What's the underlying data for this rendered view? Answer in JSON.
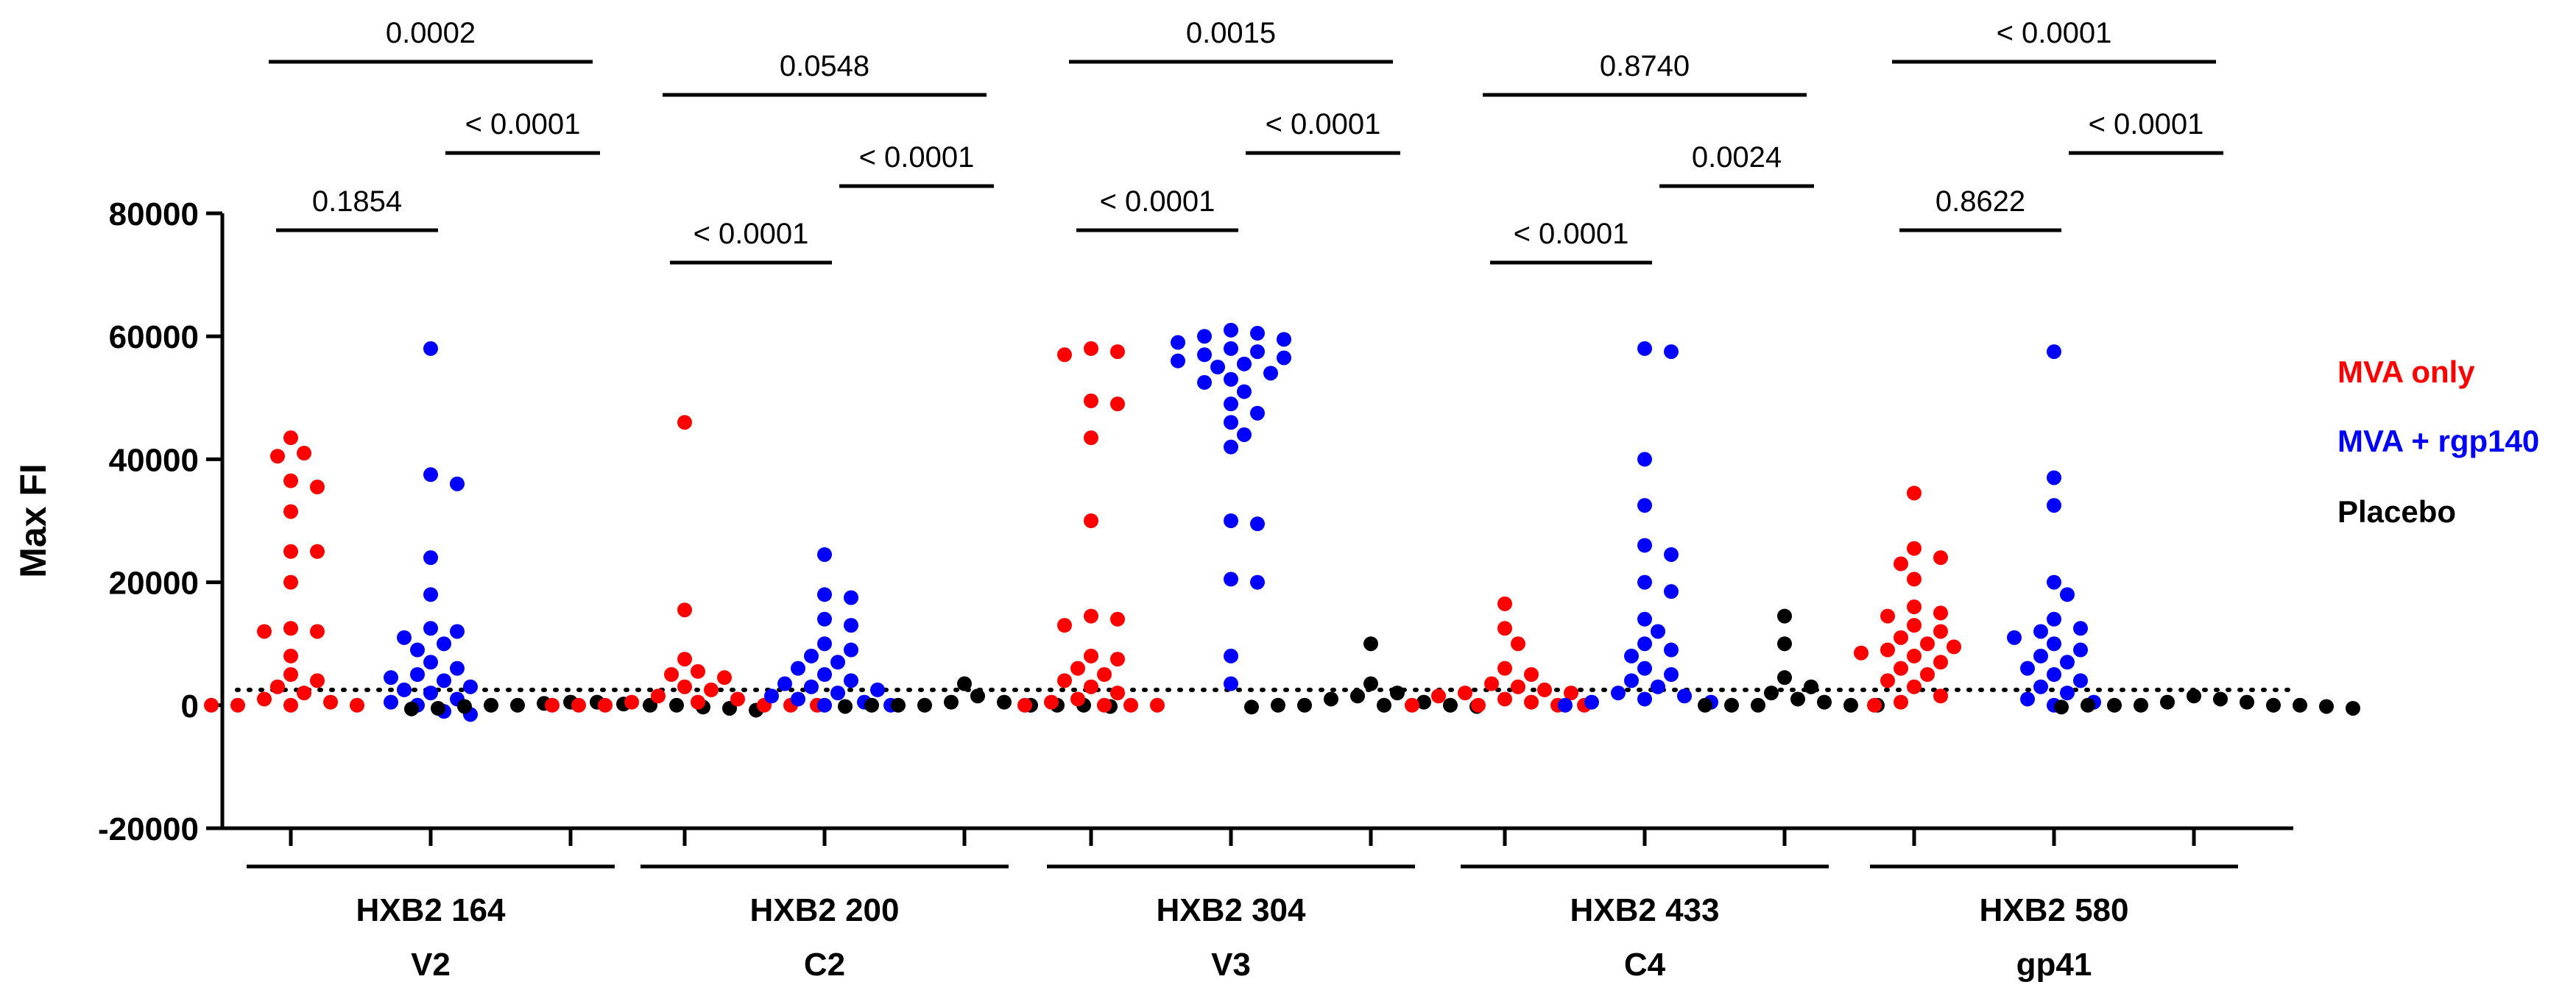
{
  "chart_data": {
    "type": "scatter",
    "ylabel": "Max FI",
    "ylim": [
      -20000,
      80000
    ],
    "yticks": [
      80000,
      60000,
      40000,
      20000,
      0,
      -20000
    ],
    "threshold": 2500,
    "legend_position": "right",
    "series": [
      {
        "name": "MVA only",
        "color": "#ff0000"
      },
      {
        "name": "MVA + rgp140",
        "color": "#0000ff"
      },
      {
        "name": "Placebo",
        "color": "#000000"
      }
    ],
    "groups": [
      {
        "line1": "HXB2 164",
        "line2": "V2",
        "comparisons": {
          "mva_vs_rgp": "0.1854",
          "rgp_vs_placebo": "< 0.0001",
          "mva_vs_placebo": "0.0002"
        },
        "values": {
          "MVA only": [
            43500,
            41000,
            40500,
            36500,
            35500,
            31500,
            25000,
            25000,
            20000,
            12500,
            12000,
            12000,
            8000,
            5000,
            4000,
            3000,
            2000,
            1000,
            500,
            0,
            0,
            0,
            0
          ],
          "MVA + rgp140": [
            58000,
            37500,
            36000,
            24000,
            18000,
            12500,
            12000,
            11000,
            10000,
            9000,
            7000,
            6000,
            5000,
            4500,
            4000,
            3000,
            2500,
            2000,
            1000,
            500,
            0,
            -1000,
            -1500
          ],
          "Placebo": [
            500,
            500,
            0,
            0,
            0,
            -200,
            -300,
            -500,
            -500,
            -600,
            -800,
            200,
            300,
            0
          ]
        }
      },
      {
        "line1": "HXB2 200",
        "line2": "C2",
        "comparisons": {
          "mva_vs_rgp": "< 0.0001",
          "rgp_vs_placebo": "< 0.0001",
          "mva_vs_placebo": "0.0548"
        },
        "values": {
          "MVA only": [
            46000,
            15500,
            7500,
            5500,
            5000,
            4500,
            3000,
            2500,
            1500,
            1000,
            500,
            500,
            0,
            0,
            0,
            0,
            0,
            0
          ],
          "MVA + rgp140": [
            24500,
            18000,
            17500,
            14000,
            13000,
            10000,
            9000,
            8000,
            7000,
            6000,
            5000,
            4000,
            3500,
            3000,
            2500,
            2000,
            1500,
            1000,
            500,
            0,
            0
          ],
          "Placebo": [
            3500,
            1500,
            500,
            500,
            0,
            0,
            0,
            0,
            0,
            -200,
            -200,
            0
          ]
        }
      },
      {
        "line1": "HXB2 304",
        "line2": "V3",
        "comparisons": {
          "mva_vs_rgp": "< 0.0001",
          "rgp_vs_placebo": "< 0.0001",
          "mva_vs_placebo": "0.0015"
        },
        "values": {
          "MVA only": [
            58000,
            57500,
            57000,
            49500,
            49000,
            43500,
            30000,
            14500,
            14000,
            13000,
            8000,
            7500,
            6000,
            5000,
            4000,
            3000,
            2000,
            1000,
            500,
            0,
            0,
            0,
            0
          ],
          "MVA + rgp140": [
            61000,
            60500,
            60000,
            59500,
            59000,
            58000,
            57500,
            57000,
            56500,
            56000,
            55500,
            55000,
            54000,
            53000,
            52500,
            51000,
            49000,
            47500,
            46000,
            44000,
            42000,
            30000,
            29500,
            20500,
            20000,
            8000,
            3500
          ],
          "Placebo": [
            10000,
            3500,
            2000,
            1500,
            1000,
            500,
            0,
            0,
            0,
            -200,
            -300,
            0
          ]
        }
      },
      {
        "line1": "HXB2 433",
        "line2": "C4",
        "comparisons": {
          "mva_vs_rgp": "< 0.0001",
          "rgp_vs_placebo": "0.0024",
          "mva_vs_placebo": "0.8740"
        },
        "values": {
          "MVA only": [
            16500,
            12500,
            10000,
            6000,
            5000,
            3500,
            3000,
            2500,
            2000,
            2000,
            1500,
            1000,
            500,
            0,
            0,
            0,
            0
          ],
          "MVA + rgp140": [
            58000,
            57500,
            40000,
            32500,
            26000,
            24500,
            20000,
            18500,
            14000,
            12000,
            10000,
            9000,
            8000,
            6000,
            5000,
            4000,
            3000,
            2000,
            1500,
            1000,
            500,
            500,
            0
          ],
          "Placebo": [
            14500,
            10000,
            4500,
            3000,
            2000,
            1000,
            500,
            0,
            0,
            0,
            0,
            0
          ]
        }
      },
      {
        "line1": "HXB2 580",
        "line2": "gp41",
        "comparisons": {
          "mva_vs_rgp": "0.8622",
          "rgp_vs_placebo": "< 0.0001",
          "mva_vs_placebo": "< 0.0001"
        },
        "values": {
          "MVA only": [
            34500,
            25500,
            24000,
            23000,
            20500,
            16000,
            15000,
            14500,
            13000,
            12000,
            11000,
            10000,
            9500,
            9000,
            8500,
            8000,
            7000,
            6000,
            5000,
            4000,
            3000,
            1500,
            500,
            0
          ],
          "MVA + rgp140": [
            57500,
            37000,
            32500,
            20000,
            18000,
            14000,
            12500,
            12000,
            11000,
            10000,
            9000,
            8000,
            7000,
            6000,
            5000,
            4000,
            3000,
            2000,
            1000,
            500,
            0
          ],
          "Placebo": [
            1500,
            1000,
            500,
            500,
            0,
            0,
            0,
            0,
            -200,
            -300,
            -500,
            0
          ]
        }
      }
    ]
  }
}
